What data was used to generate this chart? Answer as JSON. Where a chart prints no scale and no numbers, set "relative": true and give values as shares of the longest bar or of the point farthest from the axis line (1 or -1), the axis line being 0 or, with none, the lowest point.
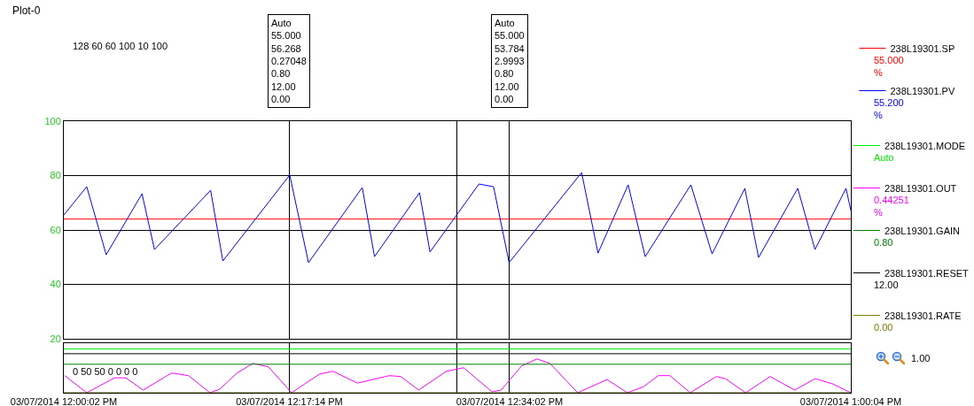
{
  "chart_data": [
    {
      "type": "line",
      "title": "Plot-0",
      "xlim": [
        "2014-03-07T12:00:02",
        "2014-03-07T13:00:04"
      ],
      "ylim": [
        20,
        100
      ],
      "yticks": [
        20,
        40,
        60,
        80,
        100
      ],
      "xticks": [
        {
          "value": "2014-03-07T12:00:02",
          "label": null
        },
        {
          "value": "2014-03-07T12:17:14",
          "label": null
        },
        {
          "value": "2014-03-07T12:30:00",
          "label": null
        },
        {
          "value": "2014-03-07T12:34:02",
          "label": null
        },
        {
          "value": "2014-03-07T13:00:04",
          "label": null
        }
      ],
      "tick_labels": "y",
      "grid": true,
      "legend": "right",
      "series": [
        {
          "name": "238L19301.SP",
          "color": "#ff0000",
          "x": [
            "2014-03-07T12:00:02",
            "2014-03-07T13:00:04"
          ],
          "values": [
            64,
            64
          ]
        },
        {
          "name": "238L19301.PV",
          "color": "#0000ff",
          "x": [
            "2014-03-07T12:00:02",
            "2014-03-07T12:01:47",
            "2014-03-07T12:03:16",
            "2014-03-07T12:06:00",
            "2014-03-07T12:06:57",
            "2014-03-07T12:11:14",
            "2014-03-07T12:12:10",
            "2014-03-07T12:17:16",
            "2014-03-07T12:18:42",
            "2014-03-07T12:22:48",
            "2014-03-07T12:23:44",
            "2014-03-07T12:27:10",
            "2014-03-07T12:27:58",
            "2014-03-07T12:31:42",
            "2014-03-07T12:32:49",
            "2014-03-07T12:34:00",
            "2014-03-07T12:39:32",
            "2014-03-07T12:40:47",
            "2014-03-07T12:43:05",
            "2014-03-07T12:44:23",
            "2014-03-07T12:47:52",
            "2014-03-07T12:49:29",
            "2014-03-07T12:51:59",
            "2014-03-07T12:53:02",
            "2014-03-07T12:56:01",
            "2014-03-07T12:57:20",
            "2014-03-07T12:59:42",
            "2014-03-07T13:00:04"
          ],
          "values": [
            65.5,
            75.9,
            50.9,
            73.3,
            52.8,
            74.6,
            48.6,
            80.2,
            48.0,
            75.6,
            50.2,
            73.7,
            51.9,
            76.9,
            75.9,
            48.0,
            81.1,
            51.5,
            76.6,
            50.2,
            76.6,
            51.2,
            75.3,
            49.9,
            75.3,
            52.8,
            75.3,
            67.2
          ]
        }
      ],
      "annotations": [
        "128 60 60 100 10 100",
        "Auto\n55.000\n56.268\n0.27048\n0.80\n12.00\n0.00",
        "Auto\n55.000\n53.784\n2.9993\n0.80\n12.00\n0.00",
        "55.000\n%",
        "55.200\n%"
      ]
    },
    {
      "type": "line",
      "relative": true,
      "xlim": [
        "2014-03-07T12:00:02",
        "2014-03-07T13:00:04"
      ],
      "xticks": [
        {
          "value": "2014-03-07T12:00:02",
          "label": "03/07/2014 12:00:02 PM"
        },
        {
          "value": "2014-03-07T12:17:14",
          "label": "03/07/2014 12:17:14 PM"
        },
        {
          "value": "2014-03-07T12:30:00",
          "label": null
        },
        {
          "value": "2014-03-07T12:34:02",
          "label": "03/07/2014 12:34:02 PM"
        },
        {
          "value": "2014-03-07T13:00:04",
          "label": "03/07/2014 1:00:04 PM"
        }
      ],
      "tick_labels": "x",
      "grid": "x",
      "legend": "right",
      "series": [
        {
          "name": "238L19301.MODE",
          "color": "#00ee00",
          "x": [
            "2014-03-07T12:00:02",
            "2014-03-07T13:00:04"
          ],
          "values": [
            1,
            1
          ]
        },
        {
          "name": "238L19301.OUT",
          "color": "#ff00ff",
          "x": [
            "2014-03-07T12:00:06",
            "2014-03-07T12:01:47",
            "2014-03-07T12:03:54",
            "2014-03-07T12:04:46",
            "2014-03-07T12:06:05",
            "2014-03-07T12:08:15",
            "2014-03-07T12:09:33",
            "2014-03-07T12:11:11",
            "2014-03-07T12:11:55",
            "2014-03-07T12:13:15",
            "2014-03-07T12:14:28",
            "2014-03-07T12:15:39",
            "2014-03-07T12:17:24",
            "2014-03-07T12:19:34",
            "2014-03-07T12:20:34",
            "2014-03-07T12:22:26",
            "2014-03-07T12:24:52",
            "2014-03-07T12:25:44",
            "2014-03-07T12:27:06",
            "2014-03-07T12:29:13",
            "2014-03-07T12:30:32",
            "2014-03-07T12:32:42",
            "2014-03-07T12:33:23",
            "2014-03-07T12:34:57",
            "2014-03-07T12:36:08",
            "2014-03-07T12:37:07",
            "2014-03-07T12:39:14",
            "2014-03-07T12:41:28",
            "2014-03-07T12:43:02",
            "2014-03-07T12:44:16",
            "2014-03-07T12:45:23",
            "2014-03-07T12:46:16",
            "2014-03-07T12:47:49",
            "2014-03-07T12:49:49",
            "2014-03-07T12:50:30",
            "2014-03-07T12:52:03",
            "2014-03-07T12:53:55",
            "2014-03-07T12:55:47",
            "2014-03-07T12:57:20",
            "2014-03-07T12:58:42",
            "2014-03-07T13:00:04"
          ],
          "values": [
            0.39,
            0,
            0.34,
            0.34,
            0.06,
            0.45,
            0.39,
            0,
            0.08,
            0.45,
            0.67,
            0.59,
            0,
            0.43,
            0.49,
            0.22,
            0.39,
            0.37,
            0.06,
            0.49,
            0.57,
            0.02,
            0.06,
            0.61,
            0.77,
            0.67,
            0,
            0.3,
            0,
            0.14,
            0.39,
            0.39,
            0,
            0.37,
            0.32,
            0,
            0.37,
            0.06,
            0.32,
            0.2,
            0
          ]
        },
        {
          "name": "238L19301.GAIN",
          "color": "#008000",
          "x": [
            "2014-03-07T12:00:02",
            "2014-03-07T13:00:04"
          ],
          "values": [
            0.65,
            0.65
          ]
        },
        {
          "name": "238L19301.RESET",
          "color": "#000000",
          "x": [
            "2014-03-07T12:00:02",
            "2014-03-07T13:00:04"
          ],
          "values": [
            0.89,
            0.89
          ]
        },
        {
          "name": "238L19301.RATE",
          "color": "#808000",
          "x": [
            "2014-03-07T12:00:02",
            "2014-03-07T13:00:04"
          ],
          "values": [
            0,
            0
          ]
        }
      ],
      "annotations": [
        "0 50 50 0 0 0 0",
        "1.00",
        "Auto",
        "0.44251\n%",
        "0.80",
        "12.00",
        "0.00"
      ]
    }
  ]
}
